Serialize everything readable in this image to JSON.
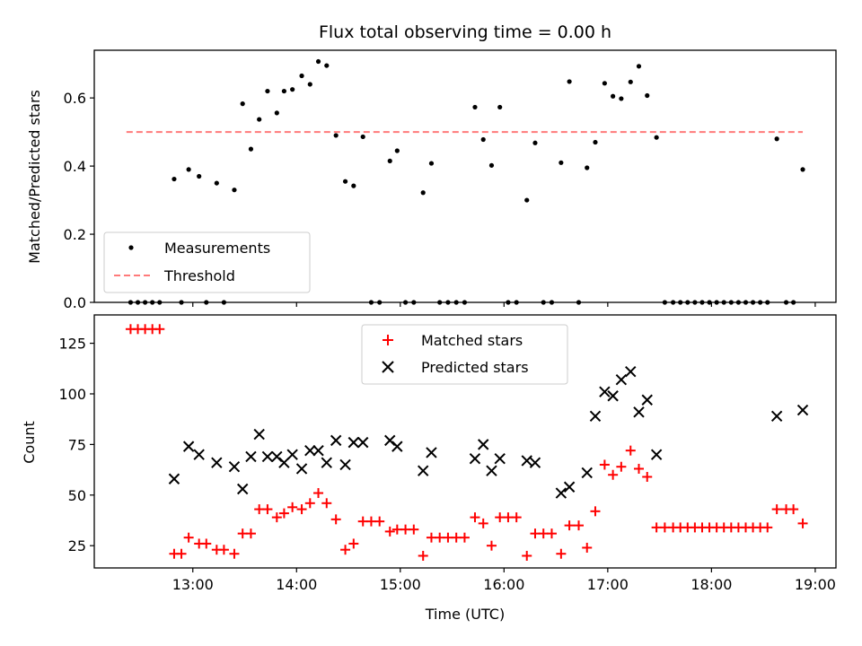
{
  "chart_data": [
    {
      "type": "scatter",
      "title": "Flux total observing time = 0.00 h",
      "xlabel": "",
      "ylabel": "Matched/Predicted stars",
      "xlim": [
        12.05,
        19.2
      ],
      "ylim": [
        0,
        0.74
      ],
      "yticks": [
        0.0,
        0.2,
        0.4,
        0.6
      ],
      "ytick_labels": [
        "0.0",
        "0.2",
        "0.4",
        "0.6"
      ],
      "xticks": [
        13,
        14,
        15,
        16,
        17,
        18,
        19
      ],
      "legend": {
        "placement": "lower-left",
        "entries": [
          "Measurements",
          "Threshold"
        ]
      },
      "series": [
        {
          "name": "Measurements",
          "color": "#000000",
          "marker": "dot",
          "points": [
            [
              12.4,
              0.0
            ],
            [
              12.47,
              0.0
            ],
            [
              12.54,
              0.0
            ],
            [
              12.61,
              0.0
            ],
            [
              12.68,
              0.0
            ],
            [
              12.82,
              0.362
            ],
            [
              12.89,
              0.0
            ],
            [
              12.96,
              0.39
            ],
            [
              13.06,
              0.37
            ],
            [
              13.13,
              0.0
            ],
            [
              13.23,
              0.35
            ],
            [
              13.3,
              0.0
            ],
            [
              13.4,
              0.33
            ],
            [
              13.48,
              0.583
            ],
            [
              13.56,
              0.45
            ],
            [
              13.64,
              0.537
            ],
            [
              13.72,
              0.62
            ],
            [
              13.81,
              0.556
            ],
            [
              13.88,
              0.62
            ],
            [
              13.96,
              0.625
            ],
            [
              14.05,
              0.665
            ],
            [
              14.13,
              0.64
            ],
            [
              14.21,
              0.707
            ],
            [
              14.29,
              0.695
            ],
            [
              14.38,
              0.49
            ],
            [
              14.47,
              0.355
            ],
            [
              14.55,
              0.342
            ],
            [
              14.64,
              0.486
            ],
            [
              14.72,
              0.0
            ],
            [
              14.8,
              0.0
            ],
            [
              14.9,
              0.415
            ],
            [
              14.97,
              0.445
            ],
            [
              15.05,
              0.0
            ],
            [
              15.13,
              0.0
            ],
            [
              15.22,
              0.322
            ],
            [
              15.3,
              0.408
            ],
            [
              15.38,
              0.0
            ],
            [
              15.46,
              0.0
            ],
            [
              15.54,
              0.0
            ],
            [
              15.62,
              0.0
            ],
            [
              15.72,
              0.573
            ],
            [
              15.8,
              0.478
            ],
            [
              15.88,
              0.402
            ],
            [
              15.96,
              0.573
            ],
            [
              16.04,
              0.0
            ],
            [
              16.12,
              0.0
            ],
            [
              16.22,
              0.3
            ],
            [
              16.3,
              0.468
            ],
            [
              16.38,
              0.0
            ],
            [
              16.46,
              0.0
            ],
            [
              16.55,
              0.41
            ],
            [
              16.63,
              0.648
            ],
            [
              16.72,
              0.0
            ],
            [
              16.8,
              0.395
            ],
            [
              16.88,
              0.47
            ],
            [
              16.97,
              0.643
            ],
            [
              17.05,
              0.605
            ],
            [
              17.13,
              0.598
            ],
            [
              17.22,
              0.647
            ],
            [
              17.3,
              0.693
            ],
            [
              17.38,
              0.607
            ],
            [
              17.47,
              0.484
            ],
            [
              17.55,
              0.0
            ],
            [
              17.63,
              0.0
            ],
            [
              17.7,
              0.0
            ],
            [
              17.77,
              0.0
            ],
            [
              17.84,
              0.0
            ],
            [
              17.91,
              0.0
            ],
            [
              17.98,
              0.0
            ],
            [
              18.05,
              0.0
            ],
            [
              18.12,
              0.0
            ],
            [
              18.19,
              0.0
            ],
            [
              18.26,
              0.0
            ],
            [
              18.33,
              0.0
            ],
            [
              18.4,
              0.0
            ],
            [
              18.47,
              0.0
            ],
            [
              18.54,
              0.0
            ],
            [
              18.63,
              0.48
            ],
            [
              18.72,
              0.0
            ],
            [
              18.79,
              0.0
            ],
            [
              18.88,
              0.39
            ]
          ]
        },
        {
          "name": "Threshold",
          "color": "#ff7a7a",
          "linestyle": "dashed",
          "x": [
            12.36,
            18.88
          ],
          "y": [
            0.5,
            0.5
          ]
        }
      ]
    },
    {
      "type": "scatter",
      "title": "",
      "xlabel": "Time (UTC)",
      "ylabel": "Count",
      "xlim": [
        12.05,
        19.2
      ],
      "ylim": [
        14,
        139
      ],
      "yticks": [
        25,
        50,
        75,
        100,
        125
      ],
      "ytick_labels": [
        "25",
        "50",
        "75",
        "100",
        "125"
      ],
      "xticks": [
        13,
        14,
        15,
        16,
        17,
        18,
        19
      ],
      "xtick_labels": [
        "13:00",
        "14:00",
        "15:00",
        "16:00",
        "17:00",
        "18:00",
        "19:00"
      ],
      "legend": {
        "placement": "upper-center",
        "entries": [
          "Matched stars",
          "Predicted stars"
        ]
      },
      "series": [
        {
          "name": "Matched stars",
          "color": "#ff0000",
          "marker": "plus",
          "points": [
            [
              12.4,
              132
            ],
            [
              12.47,
              132
            ],
            [
              12.54,
              132
            ],
            [
              12.61,
              132
            ],
            [
              12.68,
              132
            ],
            [
              12.82,
              21
            ],
            [
              12.89,
              21
            ],
            [
              12.96,
              29
            ],
            [
              13.06,
              26
            ],
            [
              13.13,
              26
            ],
            [
              13.23,
              23
            ],
            [
              13.3,
              23
            ],
            [
              13.4,
              21
            ],
            [
              13.48,
              31
            ],
            [
              13.56,
              31
            ],
            [
              13.64,
              43
            ],
            [
              13.72,
              43
            ],
            [
              13.81,
              39
            ],
            [
              13.88,
              41
            ],
            [
              13.96,
              44
            ],
            [
              14.05,
              43
            ],
            [
              14.13,
              46
            ],
            [
              14.21,
              51
            ],
            [
              14.29,
              46
            ],
            [
              14.38,
              38
            ],
            [
              14.47,
              23
            ],
            [
              14.55,
              26
            ],
            [
              14.64,
              37
            ],
            [
              14.72,
              37
            ],
            [
              14.8,
              37
            ],
            [
              14.9,
              32
            ],
            [
              14.97,
              33
            ],
            [
              15.05,
              33
            ],
            [
              15.13,
              33
            ],
            [
              15.22,
              20
            ],
            [
              15.3,
              29
            ],
            [
              15.38,
              29
            ],
            [
              15.46,
              29
            ],
            [
              15.54,
              29
            ],
            [
              15.62,
              29
            ],
            [
              15.72,
              39
            ],
            [
              15.8,
              36
            ],
            [
              15.88,
              25
            ],
            [
              15.96,
              39
            ],
            [
              16.04,
              39
            ],
            [
              16.12,
              39
            ],
            [
              16.22,
              20
            ],
            [
              16.3,
              31
            ],
            [
              16.38,
              31
            ],
            [
              16.46,
              31
            ],
            [
              16.55,
              21
            ],
            [
              16.63,
              35
            ],
            [
              16.72,
              35
            ],
            [
              16.8,
              24
            ],
            [
              16.88,
              42
            ],
            [
              16.97,
              65
            ],
            [
              17.05,
              60
            ],
            [
              17.13,
              64
            ],
            [
              17.22,
              72
            ],
            [
              17.3,
              63
            ],
            [
              17.38,
              59
            ],
            [
              17.47,
              34
            ],
            [
              17.55,
              34
            ],
            [
              17.63,
              34
            ],
            [
              17.7,
              34
            ],
            [
              17.77,
              34
            ],
            [
              17.84,
              34
            ],
            [
              17.91,
              34
            ],
            [
              17.98,
              34
            ],
            [
              18.05,
              34
            ],
            [
              18.12,
              34
            ],
            [
              18.19,
              34
            ],
            [
              18.26,
              34
            ],
            [
              18.33,
              34
            ],
            [
              18.4,
              34
            ],
            [
              18.47,
              34
            ],
            [
              18.54,
              34
            ],
            [
              18.63,
              43
            ],
            [
              18.72,
              43
            ],
            [
              18.79,
              43
            ],
            [
              18.88,
              36
            ]
          ]
        },
        {
          "name": "Predicted stars",
          "color": "#000000",
          "marker": "x",
          "points": [
            [
              12.82,
              58
            ],
            [
              12.96,
              74
            ],
            [
              13.06,
              70
            ],
            [
              13.23,
              66
            ],
            [
              13.4,
              64
            ],
            [
              13.48,
              53
            ],
            [
              13.56,
              69
            ],
            [
              13.64,
              80
            ],
            [
              13.72,
              69
            ],
            [
              13.81,
              69
            ],
            [
              13.88,
              66
            ],
            [
              13.96,
              70
            ],
            [
              14.05,
              63
            ],
            [
              14.13,
              72
            ],
            [
              14.21,
              72
            ],
            [
              14.29,
              66
            ],
            [
              14.38,
              77
            ],
            [
              14.47,
              65
            ],
            [
              14.55,
              76
            ],
            [
              14.64,
              76
            ],
            [
              14.9,
              77
            ],
            [
              14.97,
              74
            ],
            [
              15.22,
              62
            ],
            [
              15.3,
              71
            ],
            [
              15.72,
              68
            ],
            [
              15.8,
              75
            ],
            [
              15.88,
              62
            ],
            [
              15.96,
              68
            ],
            [
              16.22,
              67
            ],
            [
              16.3,
              66
            ],
            [
              16.55,
              51
            ],
            [
              16.63,
              54
            ],
            [
              16.8,
              61
            ],
            [
              16.88,
              89
            ],
            [
              16.97,
              101
            ],
            [
              17.05,
              99
            ],
            [
              17.13,
              107
            ],
            [
              17.22,
              111
            ],
            [
              17.3,
              91
            ],
            [
              17.38,
              97
            ],
            [
              17.47,
              70
            ],
            [
              18.63,
              89
            ],
            [
              18.88,
              92
            ]
          ]
        }
      ]
    }
  ]
}
